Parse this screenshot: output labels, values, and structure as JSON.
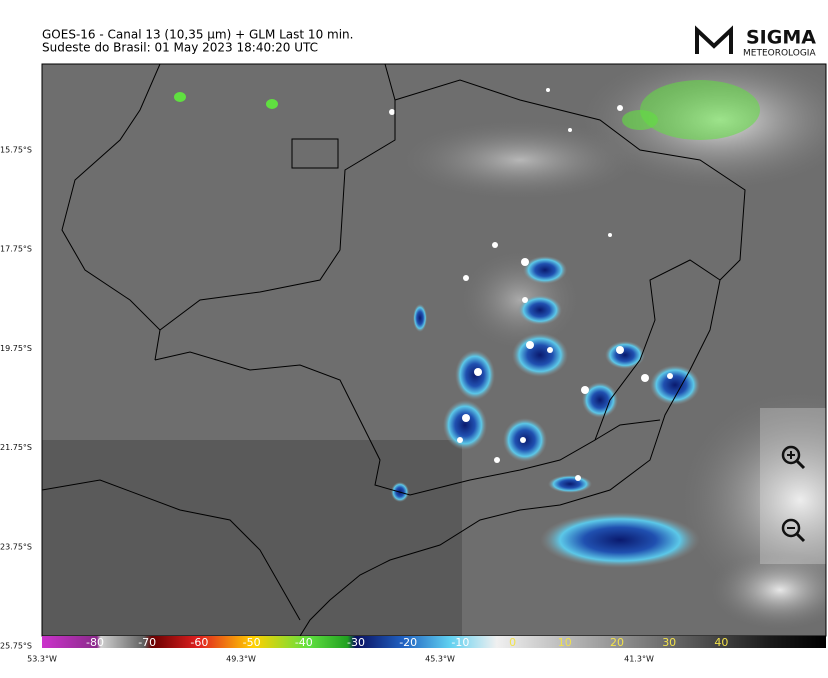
{
  "header": {
    "title_line1": "GOES-16 - Canal 13 (10,35 µm) + GLM Last 10 min.",
    "title_line2": "Sudeste do Brasil:  01 May 2023 18:40:20 UTC"
  },
  "logo": {
    "name": "SIGMA",
    "subtitle": "METEOROLOGIA"
  },
  "latitude_labels": [
    "15.75°S",
    "17.75°S",
    "19.75°S",
    "21.75°S",
    "23.75°S",
    "25.75°S"
  ],
  "longitude_labels": [
    "53.3°W",
    "49.3°W",
    "45.3°W",
    "41.3°W"
  ],
  "colorbar": {
    "labels": [
      -80,
      -70,
      -60,
      -50,
      -40,
      -30,
      -20,
      -10,
      0,
      10,
      20,
      30,
      40
    ]
  }
}
